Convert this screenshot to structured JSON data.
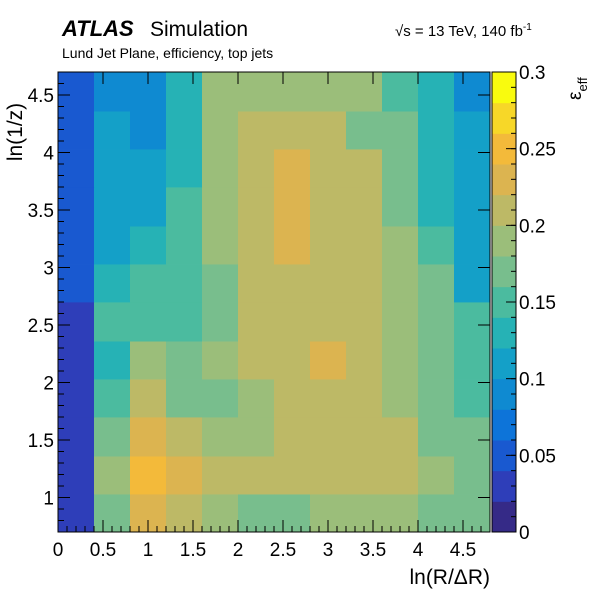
{
  "header": {
    "experiment": "ATLAS",
    "label": "Simulation",
    "energy_prefix": "√s",
    "energy_text": " = 13 TeV, 140 fb",
    "energy_sup": "-1",
    "subtitle": "Lund Jet Plane, efficiency, top jets"
  },
  "chart_data": {
    "type": "heatmap",
    "xlabel": "ln(R/ΔR)",
    "ylabel": "ln(1/z)",
    "colorbar_label": "ε",
    "colorbar_label_sub": "eff",
    "xlim": [
      0,
      4.8
    ],
    "ylim": [
      0.7,
      4.7
    ],
    "x_ticks": [
      "0",
      "0.5",
      "1",
      "1.5",
      "2",
      "2.5",
      "3",
      "3.5",
      "4",
      "4.5"
    ],
    "x_tick_values": [
      0,
      0.5,
      1,
      1.5,
      2,
      2.5,
      3,
      3.5,
      4,
      4.5
    ],
    "y_ticks": [
      "1",
      "1.5",
      "2",
      "2.5",
      "3",
      "3.5",
      "4",
      "4.5"
    ],
    "y_tick_values": [
      1,
      1.5,
      2,
      2.5,
      3,
      3.5,
      4,
      4.5
    ],
    "zlim": [
      0,
      0.3
    ],
    "z_ticks": [
      "0",
      "0.05",
      "0.1",
      "0.15",
      "0.2",
      "0.25",
      "0.3"
    ],
    "z_tick_values": [
      0,
      0.05,
      0.1,
      0.15,
      0.2,
      0.25,
      0.3
    ],
    "x_bin_edges": [
      0,
      0.4,
      0.8,
      1.2,
      1.6,
      2.0,
      2.4,
      2.8,
      3.2,
      3.6,
      4.0,
      4.4,
      4.8
    ],
    "y_bin_edges": [
      0.7,
      1.03,
      1.36,
      1.7,
      2.03,
      2.36,
      2.7,
      3.03,
      3.36,
      3.7,
      4.03,
      4.36,
      4.7
    ],
    "values": [
      [
        0.03,
        0.16,
        0.235,
        0.21,
        0.195,
        0.17,
        0.165,
        0.185,
        0.195,
        0.185,
        0.175,
        0.16
      ],
      [
        0.03,
        0.19,
        0.255,
        0.225,
        0.21,
        0.21,
        0.205,
        0.2,
        0.205,
        0.205,
        0.19,
        0.175
      ],
      [
        0.03,
        0.17,
        0.235,
        0.2,
        0.19,
        0.195,
        0.205,
        0.205,
        0.205,
        0.2,
        0.175,
        0.16
      ],
      [
        0.03,
        0.155,
        0.21,
        0.175,
        0.175,
        0.195,
        0.205,
        0.2,
        0.2,
        0.195,
        0.165,
        0.145
      ],
      [
        0.03,
        0.13,
        0.185,
        0.16,
        0.19,
        0.2,
        0.215,
        0.225,
        0.2,
        0.19,
        0.16,
        0.145
      ],
      [
        0.03,
        0.14,
        0.155,
        0.155,
        0.175,
        0.21,
        0.215,
        0.215,
        0.2,
        0.19,
        0.175,
        0.145
      ],
      [
        0.04,
        0.12,
        0.155,
        0.14,
        0.165,
        0.2,
        0.215,
        0.215,
        0.21,
        0.19,
        0.165,
        0.115
      ],
      [
        0.04,
        0.11,
        0.125,
        0.145,
        0.18,
        0.205,
        0.225,
        0.215,
        0.205,
        0.185,
        0.145,
        0.11
      ],
      [
        0.04,
        0.1,
        0.115,
        0.14,
        0.185,
        0.205,
        0.225,
        0.215,
        0.2,
        0.175,
        0.125,
        0.1
      ],
      [
        0.04,
        0.11,
        0.105,
        0.135,
        0.185,
        0.21,
        0.23,
        0.205,
        0.2,
        0.175,
        0.125,
        0.1
      ],
      [
        0.04,
        0.11,
        0.095,
        0.135,
        0.185,
        0.2,
        0.205,
        0.2,
        0.175,
        0.16,
        0.135,
        0.1
      ],
      [
        0.04,
        0.085,
        0.095,
        0.13,
        0.185,
        0.195,
        0.195,
        0.19,
        0.185,
        0.145,
        0.125,
        0.085
      ]
    ]
  },
  "palette": [
    "#352a87",
    "#2e3eb9",
    "#1959d0",
    "#0d74d9",
    "#0f8ad1",
    "#14a0c8",
    "#26b2b5",
    "#4bbb9f",
    "#78be8d",
    "#9bbe7a",
    "#bdb966",
    "#dcb450",
    "#f3ba3a",
    "#f7d728",
    "#f9fb0e"
  ]
}
